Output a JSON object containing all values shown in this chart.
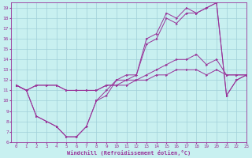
{
  "xlabel": "Windchill (Refroidissement éolien,°C)",
  "bg_color": "#c8f0f0",
  "grid_color": "#a0d0d8",
  "line_color": "#993399",
  "xlim": [
    -0.5,
    23
  ],
  "ylim": [
    6,
    19.5
  ],
  "xticks": [
    0,
    1,
    2,
    3,
    4,
    5,
    6,
    7,
    8,
    9,
    10,
    11,
    12,
    13,
    14,
    15,
    16,
    17,
    18,
    19,
    20,
    21,
    22,
    23
  ],
  "yticks": [
    6,
    7,
    8,
    9,
    10,
    11,
    12,
    13,
    14,
    15,
    16,
    17,
    18,
    19
  ],
  "series": [
    [
      11.5,
      11.0,
      11.5,
      11.5,
      11.5,
      11.0,
      11.0,
      11.0,
      11.0,
      11.5,
      11.5,
      11.5,
      12.0,
      12.0,
      12.5,
      12.5,
      13.0,
      13.0,
      13.0,
      12.5,
      13.0,
      12.5,
      12.5,
      12.5
    ],
    [
      11.5,
      11.0,
      11.5,
      11.5,
      11.5,
      11.0,
      11.0,
      11.0,
      11.0,
      11.5,
      11.5,
      12.0,
      12.0,
      12.5,
      13.0,
      13.5,
      14.0,
      14.0,
      14.5,
      13.5,
      14.0,
      12.5,
      12.5,
      12.5
    ],
    [
      11.5,
      11.0,
      8.5,
      8.0,
      7.5,
      6.5,
      6.5,
      7.5,
      10.0,
      10.5,
      12.0,
      12.0,
      12.5,
      15.5,
      16.0,
      18.0,
      17.5,
      18.5,
      18.5,
      19.0,
      19.5,
      10.5,
      12.0,
      12.5
    ],
    [
      11.5,
      11.0,
      8.5,
      8.0,
      7.5,
      6.5,
      6.5,
      7.5,
      10.0,
      11.0,
      12.0,
      12.5,
      12.5,
      16.0,
      16.5,
      18.5,
      18.0,
      19.0,
      18.5,
      19.0,
      19.5,
      10.5,
      12.0,
      12.5
    ]
  ]
}
